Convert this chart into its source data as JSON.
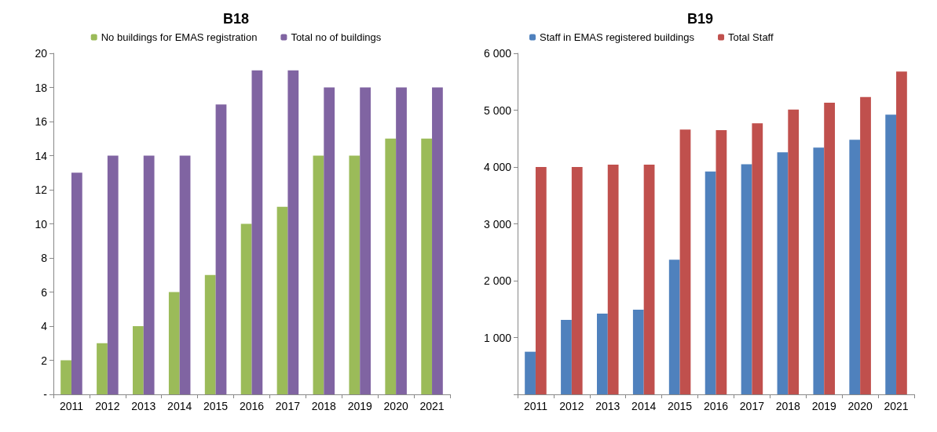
{
  "chart_data": [
    {
      "type": "bar",
      "title": "B18",
      "categories": [
        "2011",
        "2012",
        "2013",
        "2014",
        "2015",
        "2016",
        "2017",
        "2018",
        "2019",
        "2020",
        "2021"
      ],
      "series": [
        {
          "name": "No buildings for EMAS registration",
          "color": "#9bbb59",
          "values": [
            2,
            3,
            4,
            6,
            7,
            10,
            11,
            14,
            14,
            15,
            15
          ]
        },
        {
          "name": "Total no of buildings",
          "color": "#8064a2",
          "values": [
            13,
            14,
            14,
            14,
            17,
            19,
            19,
            18,
            18,
            18,
            18
          ]
        }
      ],
      "ylim": [
        0,
        20
      ],
      "yticks": [
        {
          "value": 0,
          "label": "-"
        },
        2,
        4,
        6,
        8,
        10,
        12,
        14,
        16,
        18,
        20
      ],
      "grid": false,
      "legend": "top"
    },
    {
      "type": "bar",
      "title": "B19",
      "categories": [
        "2011",
        "2012",
        "2013",
        "2014",
        "2015",
        "2016",
        "2017",
        "2018",
        "2019",
        "2020",
        "2021"
      ],
      "series": [
        {
          "name": "Staff in EMAS registered buildings",
          "color": "#4f81bd",
          "values": [
            750,
            1310,
            1420,
            1490,
            2370,
            3920,
            4050,
            4260,
            4340,
            4480,
            4920
          ]
        },
        {
          "name": "Total Staff",
          "color": "#c0504d",
          "values": [
            4000,
            4000,
            4040,
            4040,
            4660,
            4650,
            4770,
            5010,
            5130,
            5230,
            5680
          ]
        }
      ],
      "ylim": [
        0,
        6000
      ],
      "yticks": [
        {
          "value": 0,
          "label": null
        },
        {
          "value": 1000,
          "label": "1 000"
        },
        {
          "value": 2000,
          "label": "2 000"
        },
        {
          "value": 3000,
          "label": "3 000"
        },
        {
          "value": 4000,
          "label": "4 000"
        },
        {
          "value": 5000,
          "label": "5 000"
        },
        {
          "value": 6000,
          "label": "6 000"
        }
      ],
      "grid": false,
      "legend": "top left"
    }
  ]
}
